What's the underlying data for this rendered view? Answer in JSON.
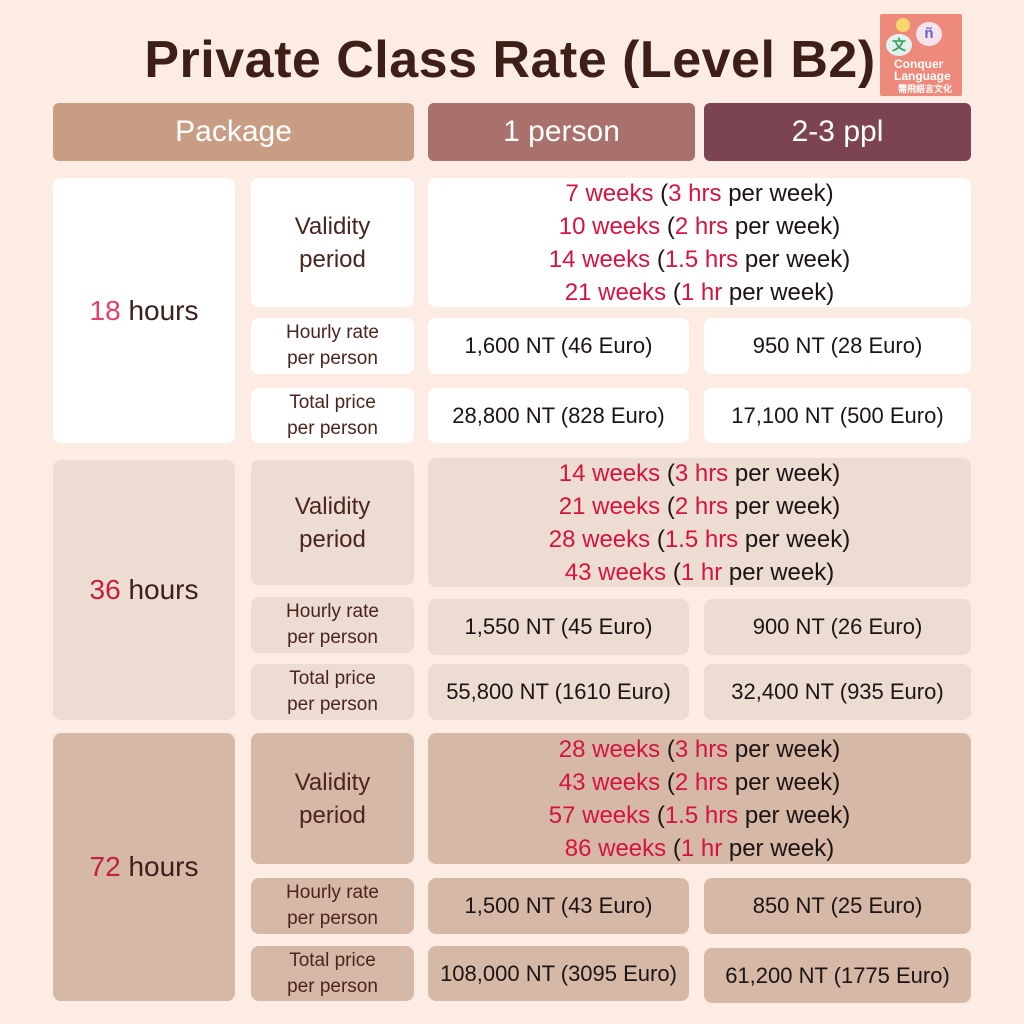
{
  "title": "Private Class Rate (Level B2)",
  "logo": {
    "glyph_left": "文",
    "glyph_right": "ñ",
    "brand_line1": "Conquer",
    "brand_line2": "Language",
    "brand_zh": "需飛語言文化"
  },
  "headers": {
    "package": "Package",
    "one": "1 person",
    "two": "2-3 ppl"
  },
  "row_labels": {
    "validity_line1": "Validity",
    "validity_line2": "period",
    "hourly_line1": "Hourly rate",
    "hourly_line2": "per person",
    "total_line1": "Total price",
    "total_line2": "per person"
  },
  "common": {
    "hours_word": "hours",
    "open_paren": "(",
    "per_week": "per week)"
  },
  "packages": [
    {
      "hours": "18",
      "validity": [
        {
          "weeks": "7 weeks",
          "rate": "3 hrs"
        },
        {
          "weeks": "10 weeks",
          "rate": "2 hrs"
        },
        {
          "weeks": "14 weeks",
          "rate": "1.5 hrs"
        },
        {
          "weeks": "21 weeks",
          "rate": "1 hr"
        }
      ],
      "hourly_one": "1,600 NT (46 Euro)",
      "hourly_two": "950 NT (28 Euro)",
      "total_one": "28,800 NT (828 Euro)",
      "total_two": "17,100 NT (500 Euro)"
    },
    {
      "hours": "36",
      "validity": [
        {
          "weeks": "14 weeks",
          "rate": "3 hrs"
        },
        {
          "weeks": "21 weeks",
          "rate": "2 hrs"
        },
        {
          "weeks": "28 weeks",
          "rate": "1.5 hrs"
        },
        {
          "weeks": "43 weeks",
          "rate": "1 hr"
        }
      ],
      "hourly_one": "1,550 NT (45 Euro)",
      "hourly_two": "900 NT (26 Euro)",
      "total_one": "55,800 NT (1610 Euro)",
      "total_two": "32,400 NT (935 Euro)"
    },
    {
      "hours": "72",
      "validity": [
        {
          "weeks": "28 weeks",
          "rate": "3 hrs"
        },
        {
          "weeks": "43 weeks",
          "rate": "2 hrs"
        },
        {
          "weeks": "57 weeks",
          "rate": "1.5 hrs"
        },
        {
          "weeks": "86 weeks",
          "rate": "1 hr"
        }
      ],
      "hourly_one": "1,500 NT (43 Euro)",
      "hourly_two": "850 NT (25 Euro)",
      "total_one": "108,000 NT (3095 Euro)",
      "total_two": "61,200 NT (1775 Euro)"
    }
  ],
  "colors": {
    "background": "#fdece4",
    "header_package": "#c99c84",
    "header_one": "#a8716b",
    "header_two": "#7c4453",
    "accent_red": "#d4143e",
    "group1": "#ffffff",
    "group2": "#ecdcd2",
    "group3": "#d6b8a6"
  }
}
